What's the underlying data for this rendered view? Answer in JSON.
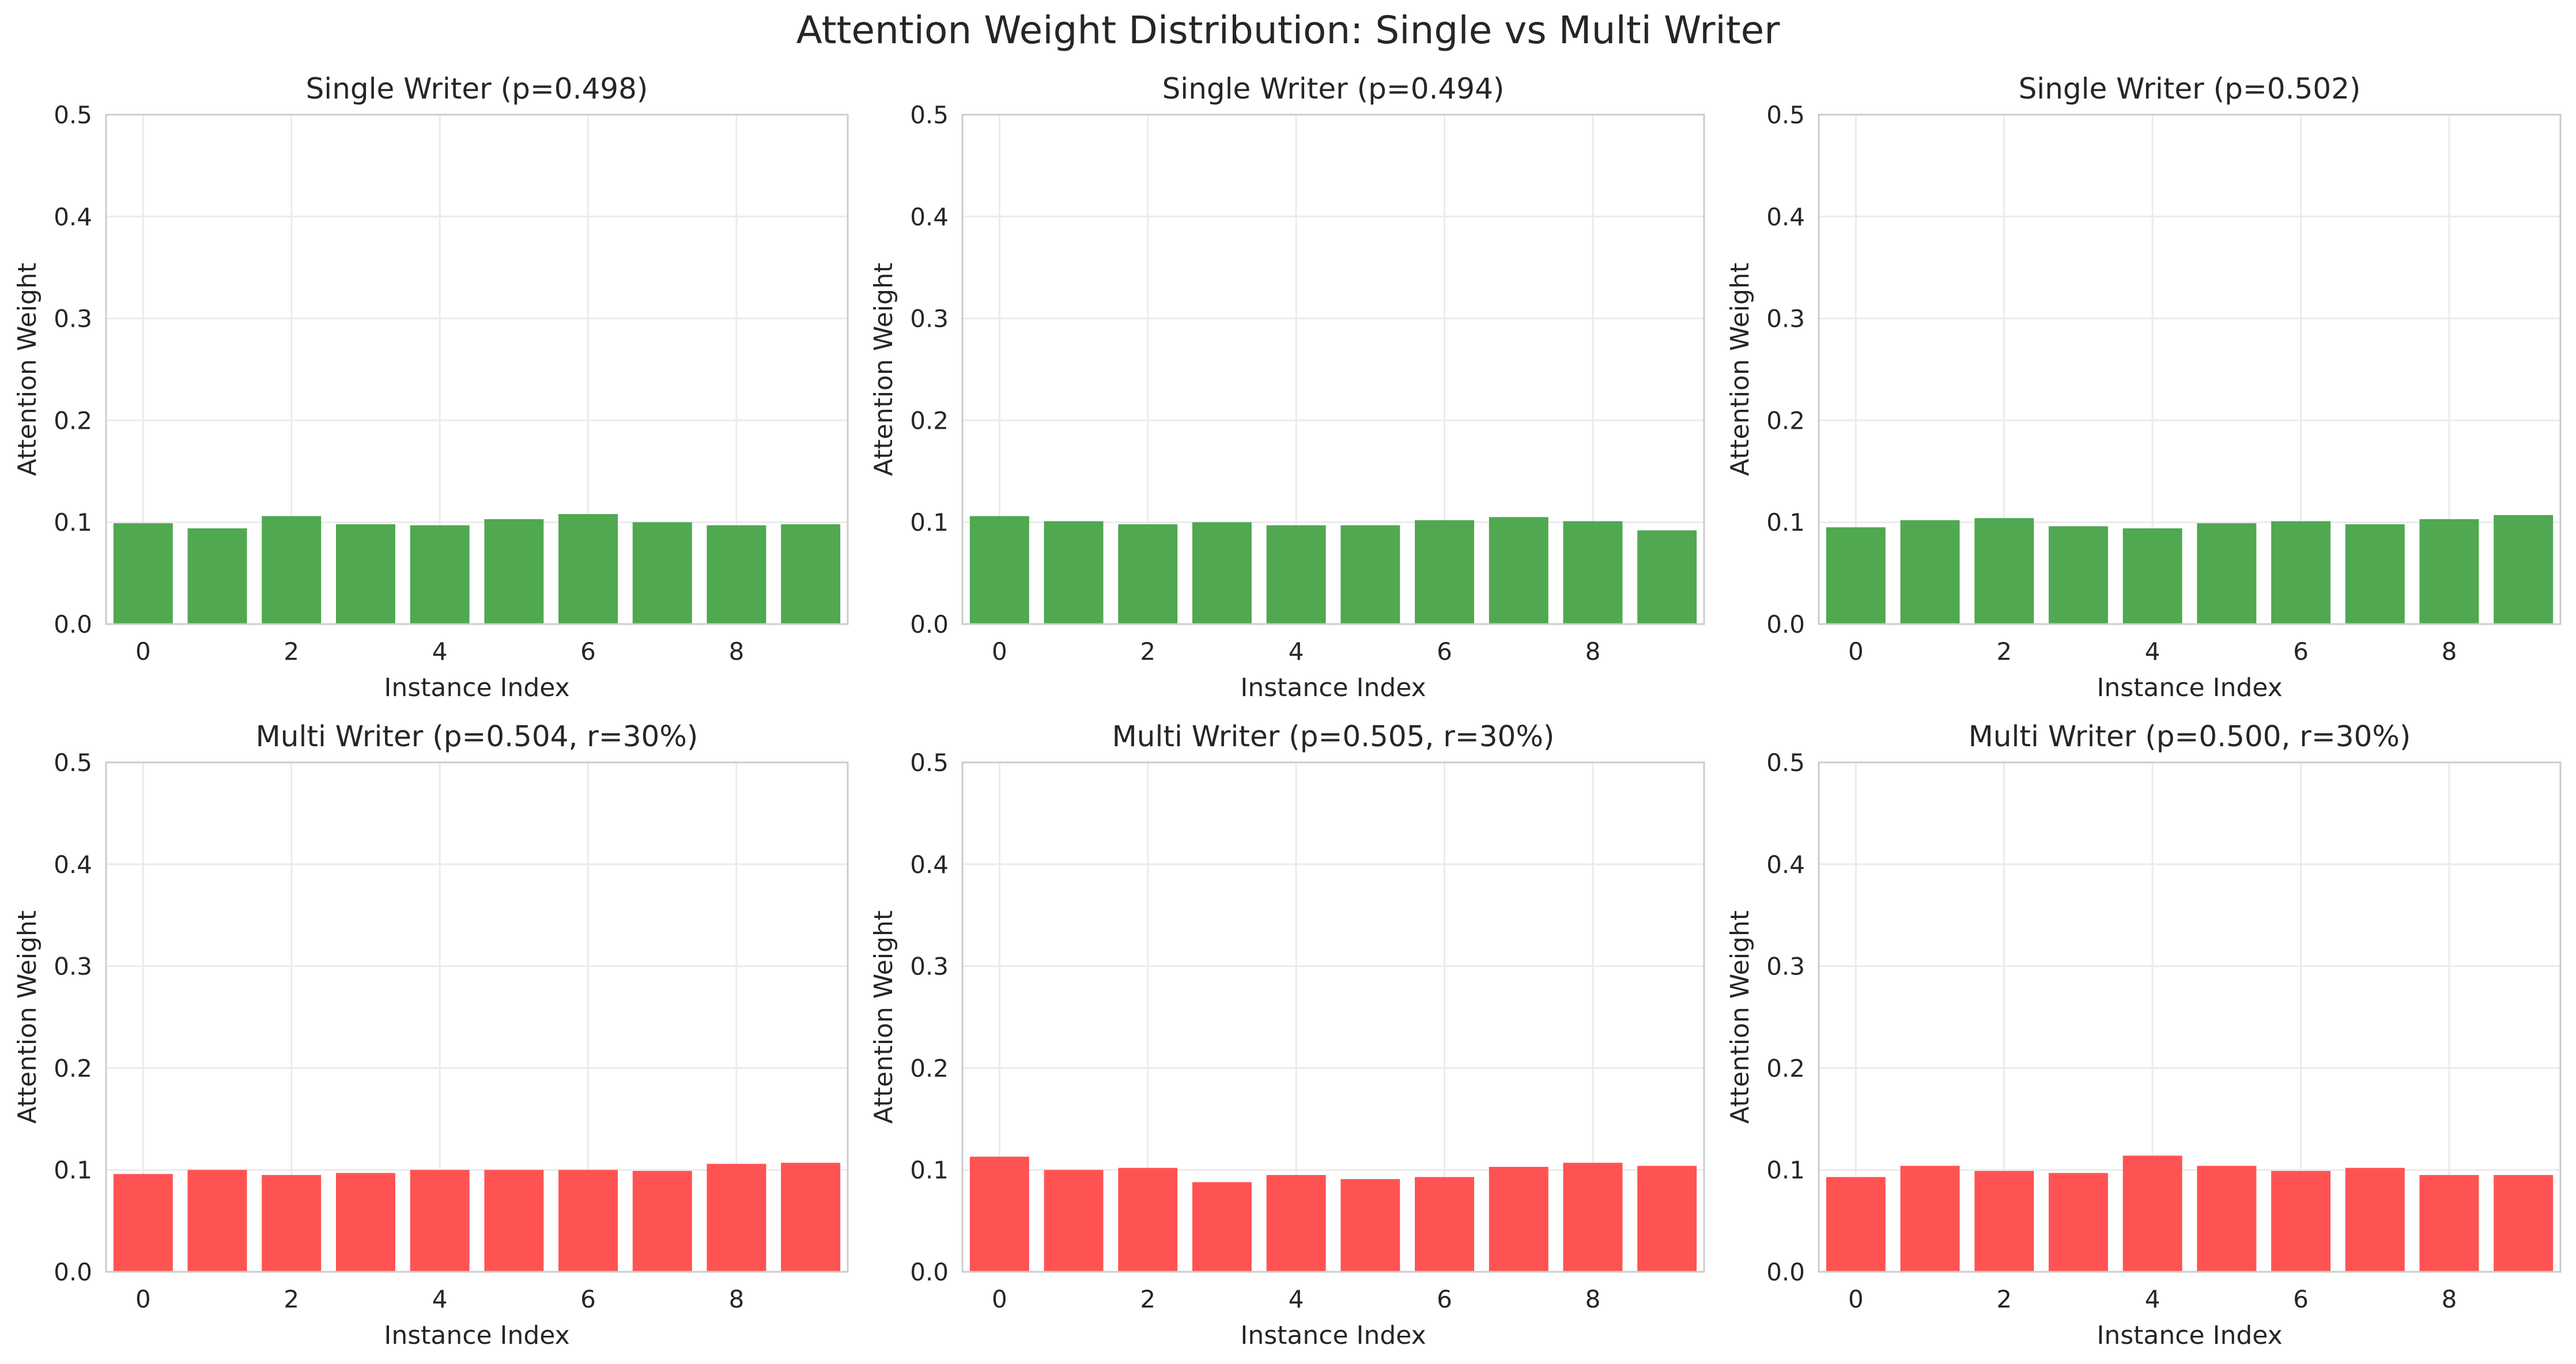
{
  "figure": {
    "title": "Attention Weight Distribution: Single vs Multi Writer"
  },
  "colors": {
    "single": "#4aa54a",
    "multi": "#ff4d4d",
    "axis": "#cccccc",
    "grid": "#ebebeb",
    "text": "#262626"
  },
  "chart_data": [
    {
      "type": "bar",
      "title": "Single Writer (p=0.498)",
      "xlabel": "Instance Index",
      "ylabel": "Attention Weight",
      "x": [
        0,
        1,
        2,
        3,
        4,
        5,
        6,
        7,
        8,
        9
      ],
      "xticks": [
        0,
        2,
        4,
        6,
        8
      ],
      "yticks": [
        0.0,
        0.1,
        0.2,
        0.3,
        0.4,
        0.5
      ],
      "ylim": [
        0,
        0.5
      ],
      "grid": true,
      "color": "#4aa54a",
      "values": [
        0.099,
        0.094,
        0.106,
        0.098,
        0.097,
        0.103,
        0.108,
        0.1,
        0.097,
        0.098
      ]
    },
    {
      "type": "bar",
      "title": "Single Writer (p=0.494)",
      "xlabel": "Instance Index",
      "ylabel": "Attention Weight",
      "x": [
        0,
        1,
        2,
        3,
        4,
        5,
        6,
        7,
        8,
        9
      ],
      "xticks": [
        0,
        2,
        4,
        6,
        8
      ],
      "yticks": [
        0.0,
        0.1,
        0.2,
        0.3,
        0.4,
        0.5
      ],
      "ylim": [
        0,
        0.5
      ],
      "grid": true,
      "color": "#4aa54a",
      "values": [
        0.106,
        0.101,
        0.098,
        0.1,
        0.097,
        0.097,
        0.102,
        0.105,
        0.101,
        0.092
      ]
    },
    {
      "type": "bar",
      "title": "Single Writer (p=0.502)",
      "xlabel": "Instance Index",
      "ylabel": "Attention Weight",
      "x": [
        0,
        1,
        2,
        3,
        4,
        5,
        6,
        7,
        8,
        9
      ],
      "xticks": [
        0,
        2,
        4,
        6,
        8
      ],
      "yticks": [
        0.0,
        0.1,
        0.2,
        0.3,
        0.4,
        0.5
      ],
      "ylim": [
        0,
        0.5
      ],
      "grid": true,
      "color": "#4aa54a",
      "values": [
        0.095,
        0.102,
        0.104,
        0.096,
        0.094,
        0.099,
        0.101,
        0.098,
        0.103,
        0.107
      ]
    },
    {
      "type": "bar",
      "title": "Multi Writer (p=0.504, r=30%)",
      "xlabel": "Instance Index",
      "ylabel": "Attention Weight",
      "x": [
        0,
        1,
        2,
        3,
        4,
        5,
        6,
        7,
        8,
        9
      ],
      "xticks": [
        0,
        2,
        4,
        6,
        8
      ],
      "yticks": [
        0.0,
        0.1,
        0.2,
        0.3,
        0.4,
        0.5
      ],
      "ylim": [
        0,
        0.5
      ],
      "grid": true,
      "color": "#ff4d4d",
      "values": [
        0.096,
        0.1,
        0.095,
        0.097,
        0.1,
        0.1,
        0.1,
        0.099,
        0.106,
        0.107
      ]
    },
    {
      "type": "bar",
      "title": "Multi Writer (p=0.505, r=30%)",
      "xlabel": "Instance Index",
      "ylabel": "Attention Weight",
      "x": [
        0,
        1,
        2,
        3,
        4,
        5,
        6,
        7,
        8,
        9
      ],
      "xticks": [
        0,
        2,
        4,
        6,
        8
      ],
      "yticks": [
        0.0,
        0.1,
        0.2,
        0.3,
        0.4,
        0.5
      ],
      "ylim": [
        0,
        0.5
      ],
      "grid": true,
      "color": "#ff4d4d",
      "values": [
        0.113,
        0.1,
        0.102,
        0.088,
        0.095,
        0.091,
        0.093,
        0.103,
        0.107,
        0.104
      ]
    },
    {
      "type": "bar",
      "title": "Multi Writer (p=0.500, r=30%)",
      "xlabel": "Instance Index",
      "ylabel": "Attention Weight",
      "x": [
        0,
        1,
        2,
        3,
        4,
        5,
        6,
        7,
        8,
        9
      ],
      "xticks": [
        0,
        2,
        4,
        6,
        8
      ],
      "yticks": [
        0.0,
        0.1,
        0.2,
        0.3,
        0.4,
        0.5
      ],
      "ylim": [
        0,
        0.5
      ],
      "grid": true,
      "color": "#ff4d4d",
      "values": [
        0.093,
        0.104,
        0.099,
        0.097,
        0.114,
        0.104,
        0.099,
        0.102,
        0.095,
        0.095
      ]
    }
  ]
}
